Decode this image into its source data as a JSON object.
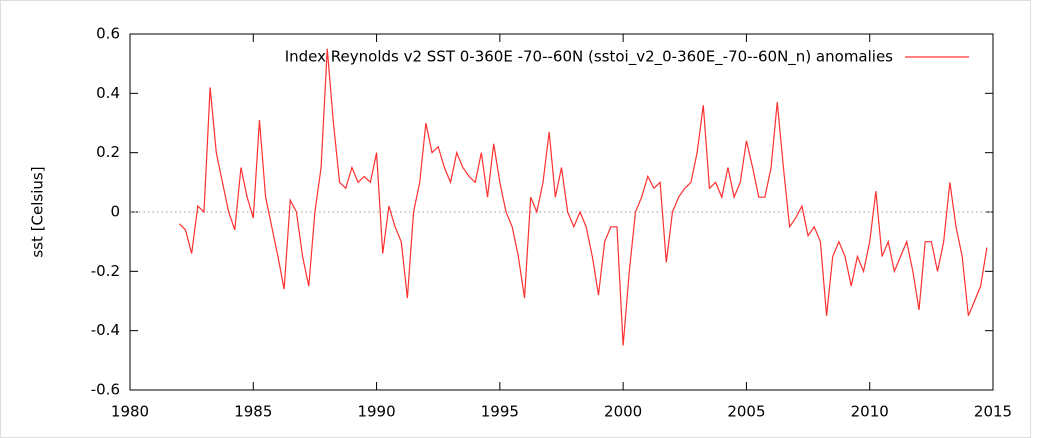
{
  "chart_data": {
    "type": "line",
    "y_label": "sst [Celsius]",
    "xlim": [
      1980,
      2015
    ],
    "xticks": [
      1980,
      1985,
      1990,
      1995,
      2000,
      2005,
      2010,
      2015
    ],
    "ylim": [
      -0.6,
      0.6
    ],
    "yticks": [
      -0.6,
      -0.4,
      -0.2,
      0,
      0.2,
      0.4,
      0.6
    ],
    "zeroaxis": true,
    "legend": "top-right",
    "x": [
      1982.0,
      1982.25,
      1982.5,
      1982.75,
      1983.0,
      1983.25,
      1983.5,
      1983.75,
      1984.0,
      1984.25,
      1984.5,
      1984.75,
      1985.0,
      1985.25,
      1985.5,
      1985.75,
      1986.0,
      1986.25,
      1986.5,
      1986.75,
      1987.0,
      1987.25,
      1987.5,
      1987.75,
      1988.0,
      1988.25,
      1988.5,
      1988.75,
      1989.0,
      1989.25,
      1989.5,
      1989.75,
      1990.0,
      1990.25,
      1990.5,
      1990.75,
      1991.0,
      1991.25,
      1991.5,
      1991.75,
      1992.0,
      1992.25,
      1992.5,
      1992.75,
      1993.0,
      1993.25,
      1993.5,
      1993.75,
      1994.0,
      1994.25,
      1994.5,
      1994.75,
      1995.0,
      1995.25,
      1995.5,
      1995.75,
      1996.0,
      1996.25,
      1996.5,
      1996.75,
      1997.0,
      1997.25,
      1997.5,
      1997.75,
      1998.0,
      1998.25,
      1998.5,
      1998.75,
      1999.0,
      1999.25,
      1999.5,
      1999.75,
      2000.0,
      2000.25,
      2000.5,
      2000.75,
      2001.0,
      2001.25,
      2001.5,
      2001.75,
      2002.0,
      2002.25,
      2002.5,
      2002.75,
      2003.0,
      2003.25,
      2003.5,
      2003.75,
      2004.0,
      2004.25,
      2004.5,
      2004.75,
      2005.0,
      2005.25,
      2005.5,
      2005.75,
      2006.0,
      2006.25,
      2006.5,
      2006.75,
      2007.0,
      2007.25,
      2007.5,
      2007.75,
      2008.0,
      2008.25,
      2008.5,
      2008.75,
      2009.0,
      2009.25,
      2009.5,
      2009.75,
      2010.0,
      2010.25,
      2010.5,
      2010.75,
      2011.0,
      2011.25,
      2011.5,
      2011.75,
      2012.0,
      2012.25,
      2012.5,
      2012.75,
      2013.0,
      2013.25,
      2013.5,
      2013.75,
      2014.0,
      2014.25,
      2014.5,
      2014.75
    ],
    "series": [
      {
        "name": "Index Reynolds v2 SST 0-360E -70--60N (sstoi_v2_0-360E_-70--60N_n) anomalies",
        "color": "#ff3030",
        "values": [
          -0.04,
          -0.06,
          -0.14,
          0.02,
          0.0,
          0.42,
          0.2,
          0.1,
          0.0,
          -0.06,
          0.15,
          0.05,
          -0.02,
          0.31,
          0.05,
          -0.05,
          -0.15,
          -0.26,
          0.04,
          0.0,
          -0.15,
          -0.25,
          0.0,
          0.15,
          0.55,
          0.3,
          0.1,
          0.08,
          0.15,
          0.1,
          0.12,
          0.1,
          0.2,
          -0.14,
          0.02,
          -0.05,
          -0.1,
          -0.29,
          0.0,
          0.1,
          0.3,
          0.2,
          0.22,
          0.15,
          0.1,
          0.2,
          0.15,
          0.12,
          0.1,
          0.2,
          0.05,
          0.23,
          0.1,
          0.0,
          -0.05,
          -0.15,
          -0.29,
          0.05,
          0.0,
          0.1,
          0.27,
          0.05,
          0.15,
          0.0,
          -0.05,
          0.0,
          -0.05,
          -0.15,
          -0.28,
          -0.1,
          -0.05,
          -0.05,
          -0.45,
          -0.2,
          0.0,
          0.05,
          0.12,
          0.08,
          0.1,
          -0.17,
          0.0,
          0.05,
          0.08,
          0.1,
          0.2,
          0.36,
          0.08,
          0.1,
          0.05,
          0.15,
          0.05,
          0.1,
          0.24,
          0.15,
          0.05,
          0.05,
          0.15,
          0.37,
          0.15,
          -0.05,
          -0.02,
          0.02,
          -0.08,
          -0.05,
          -0.1,
          -0.35,
          -0.15,
          -0.1,
          -0.15,
          -0.25,
          -0.15,
          -0.2,
          -0.1,
          0.07,
          -0.15,
          -0.1,
          -0.2,
          -0.15,
          -0.1,
          -0.2,
          -0.33,
          -0.1,
          -0.1,
          -0.2,
          -0.1,
          0.1,
          -0.05,
          -0.15,
          -0.35,
          -0.3,
          -0.25,
          -0.12
        ]
      }
    ]
  }
}
